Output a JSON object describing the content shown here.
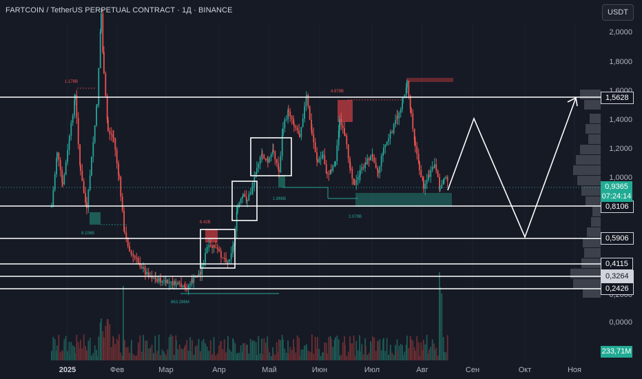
{
  "header": {
    "title": "FARTCOIN / TetherUS PERPETUAL CONTRACT · 1Д · BINANCE",
    "currency_button": "USDT"
  },
  "price_axis": {
    "labels": [
      "2,0000",
      "1,8000",
      "1,6000",
      "1,4000",
      "1,2000",
      "1,0000",
      "0,2000",
      "0,0000"
    ],
    "levels": [
      "1,5628",
      "0,8106",
      "0,5906",
      "0,4115",
      "0,3264",
      "0,2426"
    ],
    "current_price": "0,9365",
    "countdown": "07:24:14",
    "volume_label": "233,71M"
  },
  "time_axis": [
    "2025",
    "Фев",
    "Мар",
    "Апр",
    "Май",
    "Июн",
    "Июл",
    "Авг",
    "Сен",
    "Окт",
    "Ноя"
  ],
  "annotations": {
    "high_1": "1.178B",
    "low_1": "8.106B",
    "high_2": "6.42B",
    "low_2": "863.286M",
    "high_3": "4.979B",
    "low_3": "1.866B",
    "low_4": "2.079B"
  },
  "colors": {
    "bg": "#161a25",
    "up": "#26a69a",
    "down": "#ef5350",
    "line": "#ffffff"
  }
}
